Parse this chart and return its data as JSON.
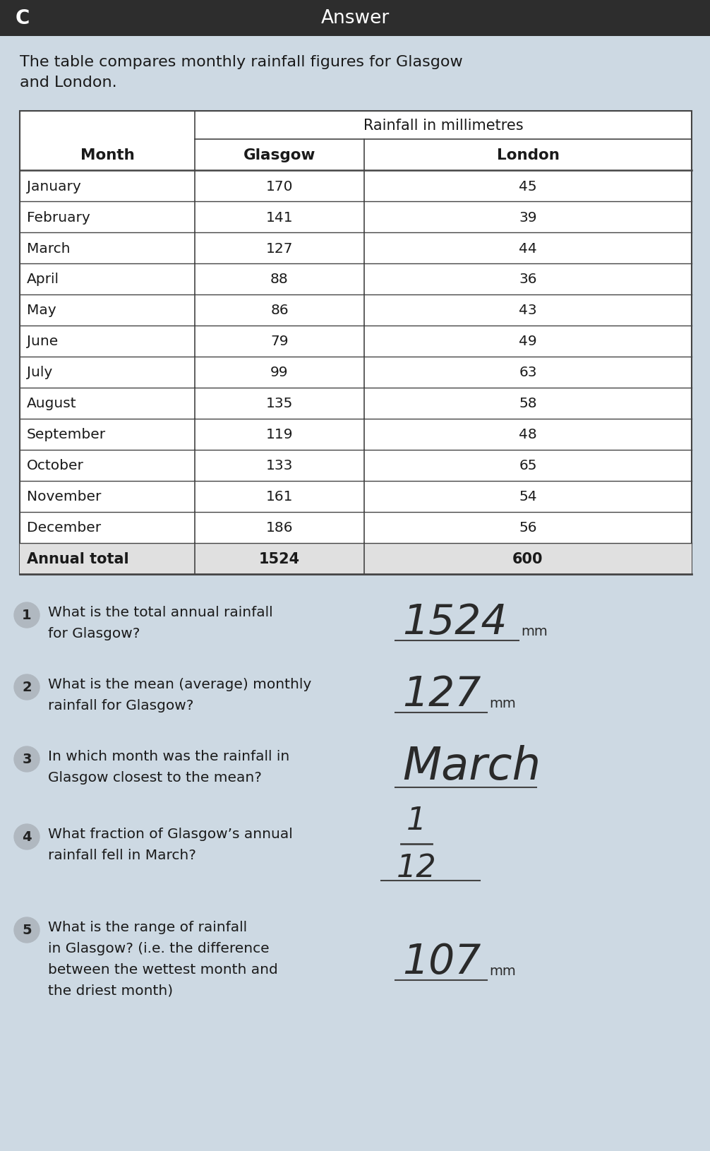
{
  "header_bar_color": "#2d2d2d",
  "header_text": "Answer",
  "header_left_text": "C",
  "bg_color": "#cdd9e3",
  "intro_text": "The table compares monthly rainfall figures for Glasgow\nand London.",
  "table_header_span": "Rainfall in millimetres",
  "col_headers": [
    "Month",
    "Glasgow",
    "London"
  ],
  "months": [
    "January",
    "February",
    "March",
    "April",
    "May",
    "June",
    "July",
    "August",
    "September",
    "October",
    "November",
    "December",
    "Annual total"
  ],
  "glasgow": [
    170,
    141,
    127,
    88,
    86,
    79,
    99,
    135,
    119,
    133,
    161,
    186,
    1524
  ],
  "london": [
    45,
    39,
    44,
    36,
    43,
    49,
    63,
    58,
    48,
    65,
    54,
    56,
    600
  ],
  "q1_text_line1": "What is the total annual rainfall",
  "q1_text_line2": "for Glasgow?",
  "q1_answer": "1524",
  "q1_suffix": "mm",
  "q2_text_line1": "What is the mean (average) monthly",
  "q2_text_line2": "rainfall for Glasgow?",
  "q2_answer": "127",
  "q2_suffix": "mm",
  "q3_text_line1": "In which month was the rainfall in",
  "q3_text_line2": "Glasgow closest to the mean?",
  "q3_answer": "March",
  "q4_text_line1": "What fraction of Glasgow’s annual",
  "q4_text_line2": "rainfall fell in March?",
  "q4_num": "1",
  "q4_den": "12",
  "q5_text_line1": "What is the range of rainfall",
  "q5_text_line2": "in Glasgow? (i.e. the difference",
  "q5_text_line3": "between the wettest month and",
  "q5_text_line4": "the driest month)",
  "q5_answer": "107",
  "q5_suffix": "mm",
  "text_color": "#1a1a1a",
  "answer_color": "#2a2a2a",
  "line_color": "#444444",
  "circle_color": "#b0b8c0"
}
